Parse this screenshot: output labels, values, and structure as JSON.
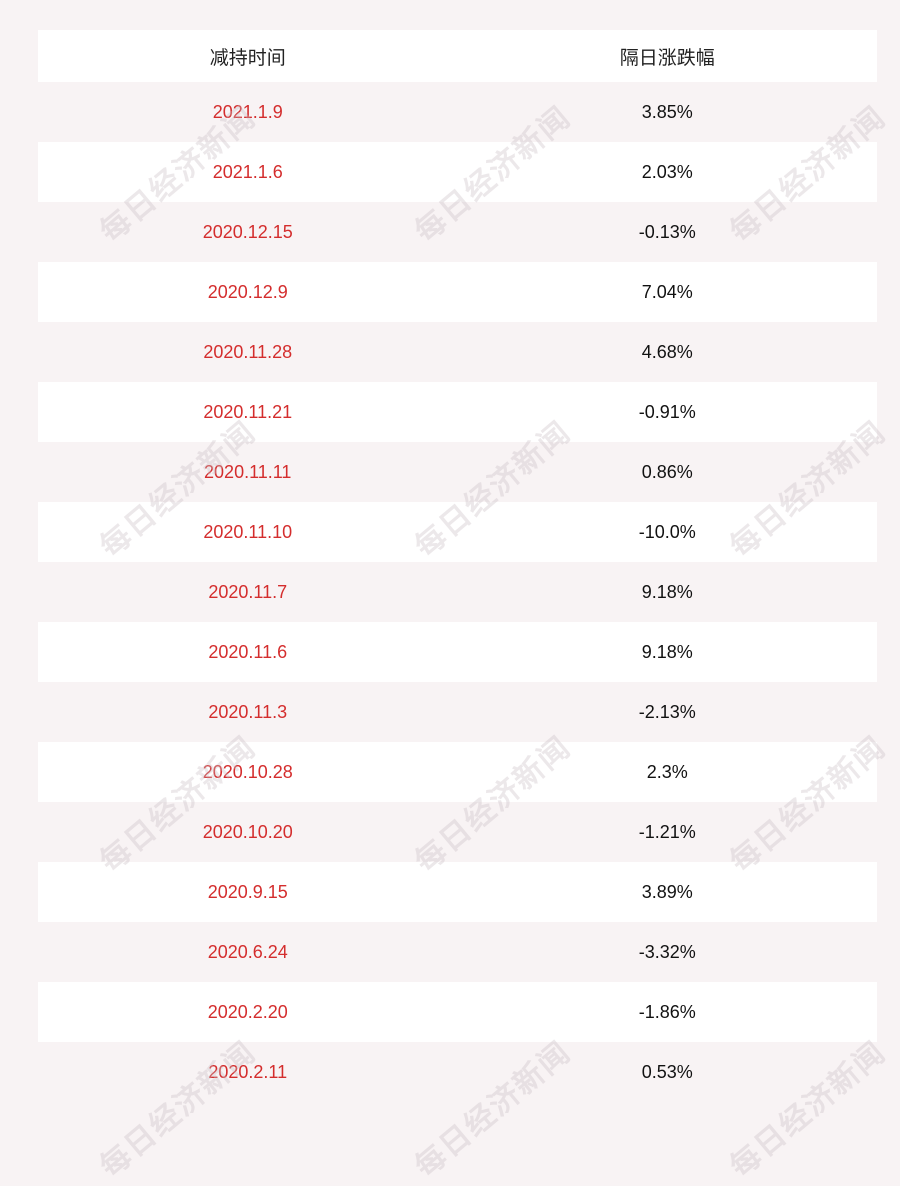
{
  "table": {
    "headers": [
      "减持时间",
      "隔日涨跌幅"
    ],
    "rows": [
      {
        "date": "2021.1.9",
        "change": "3.85%"
      },
      {
        "date": "2021.1.6",
        "change": "2.03%"
      },
      {
        "date": "2020.12.15",
        "change": "-0.13%"
      },
      {
        "date": "2020.12.9",
        "change": "7.04%"
      },
      {
        "date": "2020.11.28",
        "change": "4.68%"
      },
      {
        "date": "2020.11.21",
        "change": "-0.91%"
      },
      {
        "date": "2020.11.11",
        "change": "0.86%"
      },
      {
        "date": "2020.11.10",
        "change": "-10.0%"
      },
      {
        "date": "2020.11.7",
        "change": "9.18%"
      },
      {
        "date": "2020.11.6",
        "change": "9.18%"
      },
      {
        "date": "2020.11.3",
        "change": "-2.13%"
      },
      {
        "date": "2020.10.28",
        "change": "2.3%"
      },
      {
        "date": "2020.10.20",
        "change": "-1.21%"
      },
      {
        "date": "2020.9.15",
        "change": "3.89%"
      },
      {
        "date": "2020.6.24",
        "change": "-3.32%"
      },
      {
        "date": "2020.2.20",
        "change": "-1.86%"
      },
      {
        "date": "2020.2.11",
        "change": "0.53%"
      }
    ]
  },
  "watermark": "每日经济新闻",
  "colors": {
    "date_text": "#d42d2d",
    "value_text": "#111111",
    "stripe": "#f8f3f4"
  }
}
